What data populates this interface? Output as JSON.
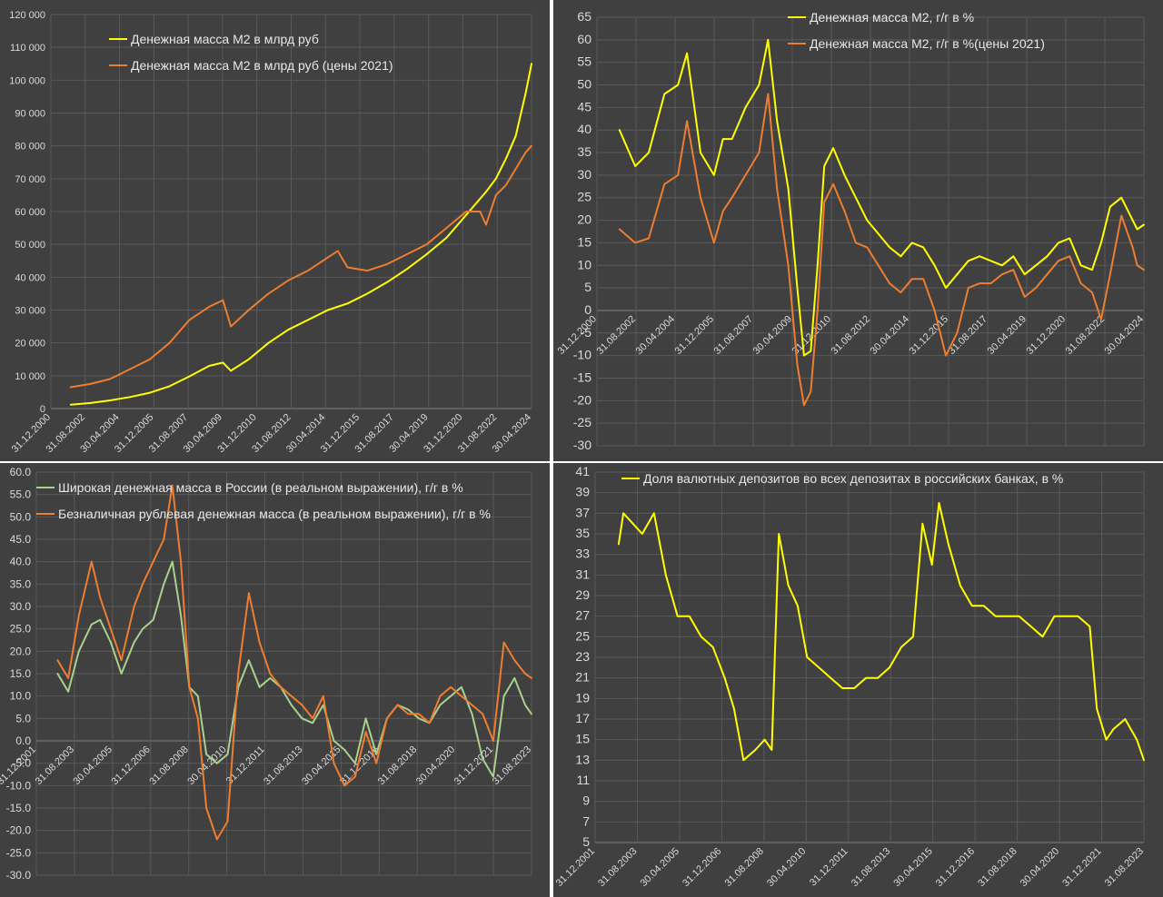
{
  "chart_data": [
    {
      "type": "line",
      "x_ticks": [
        "31.12.2000",
        "31.08.2002",
        "30.04.2004",
        "31.12.2005",
        "31.08.2007",
        "30.04.2009",
        "31.12.2010",
        "31.08.2012",
        "30.04.2014",
        "31.12.2015",
        "31.08.2017",
        "30.04.2019",
        "31.12.2020",
        "31.08.2022",
        "30.04.2024"
      ],
      "y_ticks": [
        "0",
        "10 000",
        "20 000",
        "30 000",
        "40 000",
        "50 000",
        "60 000",
        "70 000",
        "80 000",
        "90 000",
        "100 000",
        "110 000",
        "120 000"
      ],
      "ylim": [
        0,
        120000
      ],
      "xlim": [
        2000.0,
        2024.3
      ],
      "series": [
        {
          "name": "Денежная масса М2 в млрд руб",
          "color": "#ffff00",
          "x": [
            2001.0,
            2002.0,
            2003.0,
            2004.0,
            2005.0,
            2006.0,
            2007.0,
            2008.0,
            2008.7,
            2009.1,
            2010.0,
            2011.0,
            2012.0,
            2013.0,
            2014.0,
            2015.0,
            2016.0,
            2017.0,
            2018.0,
            2019.0,
            2020.0,
            2021.0,
            2022.0,
            2022.5,
            2023.0,
            2023.5,
            2024.0,
            2024.3
          ],
          "values": [
            1200,
            1700,
            2500,
            3500,
            4800,
            6800,
            9800,
            13000,
            14000,
            11500,
            15000,
            20000,
            24000,
            27000,
            30000,
            32000,
            35000,
            38500,
            42500,
            47000,
            52000,
            59000,
            66000,
            70000,
            76000,
            83000,
            96000,
            105000
          ]
        },
        {
          "name": "Денежная масса М2 в млрд руб (цены 2021)",
          "color": "#ed7d31",
          "x": [
            2001.0,
            2002.0,
            2003.0,
            2004.0,
            2005.0,
            2006.0,
            2007.0,
            2008.0,
            2008.7,
            2009.1,
            2010.0,
            2011.0,
            2012.0,
            2013.0,
            2014.0,
            2014.5,
            2015.0,
            2016.0,
            2017.0,
            2018.0,
            2019.0,
            2020.0,
            2021.0,
            2021.7,
            2022.0,
            2022.5,
            2023.0,
            2023.5,
            2024.0,
            2024.3
          ],
          "values": [
            6500,
            7500,
            9000,
            12000,
            15000,
            20000,
            27000,
            31000,
            33000,
            25000,
            30000,
            35000,
            39000,
            42000,
            46000,
            48000,
            43000,
            42000,
            44000,
            47000,
            50000,
            55000,
            60000,
            60000,
            56000,
            65000,
            68000,
            73000,
            78000,
            80000
          ]
        }
      ]
    },
    {
      "type": "line",
      "x_ticks": [
        "31.12.2000",
        "31.08.2002",
        "30.04.2004",
        "31.12.2005",
        "31.08.2007",
        "30.04.2009",
        "31.12.2010",
        "31.08.2012",
        "30.04.2014",
        "31.12.2015",
        "31.08.2017",
        "30.04.2019",
        "31.12.2020",
        "31.08.2022",
        "30.04.2024"
      ],
      "y_ticks": [
        "-30",
        "-25",
        "-20",
        "-15",
        "-10",
        "-5",
        "0",
        "5",
        "10",
        "15",
        "20",
        "25",
        "30",
        "35",
        "40",
        "45",
        "50",
        "55",
        "60",
        "65"
      ],
      "ylim": [
        -30,
        65
      ],
      "xlim": [
        2000.0,
        2024.3
      ],
      "series": [
        {
          "name": "Денежная масса М2, г/г в %",
          "color": "#ffff00",
          "x": [
            2001.0,
            2001.7,
            2002.3,
            2003.0,
            2003.6,
            2004.0,
            2004.6,
            2005.2,
            2005.6,
            2006.0,
            2006.6,
            2007.2,
            2007.6,
            2008.0,
            2008.5,
            2008.9,
            2009.2,
            2009.5,
            2009.8,
            2010.1,
            2010.5,
            2011.0,
            2011.5,
            2012.0,
            2012.5,
            2013.0,
            2013.5,
            2014.0,
            2014.5,
            2015.0,
            2015.5,
            2016.0,
            2016.5,
            2017.0,
            2017.5,
            2018.0,
            2018.5,
            2019.0,
            2019.5,
            2020.0,
            2020.5,
            2021.0,
            2021.5,
            2022.0,
            2022.4,
            2022.8,
            2023.3,
            2023.8,
            2024.0,
            2024.3
          ],
          "values": [
            40,
            32,
            35,
            48,
            50,
            57,
            35,
            30,
            38,
            38,
            45,
            50,
            60,
            42,
            27,
            5,
            -10,
            -9,
            10,
            32,
            36,
            30,
            25,
            20,
            17,
            14,
            12,
            15,
            14,
            10,
            5,
            8,
            11,
            12,
            11,
            10,
            12,
            8,
            10,
            12,
            15,
            16,
            10,
            9,
            15,
            23,
            25,
            20,
            18,
            19
          ]
        },
        {
          "name": "Денежная масса М2, г/г в %(цены 2021)",
          "color": "#ed7d31",
          "x": [
            2001.0,
            2001.7,
            2002.3,
            2003.0,
            2003.6,
            2004.0,
            2004.6,
            2005.2,
            2005.6,
            2006.0,
            2006.6,
            2007.2,
            2007.6,
            2008.0,
            2008.5,
            2008.9,
            2009.2,
            2009.5,
            2009.8,
            2010.1,
            2010.5,
            2011.0,
            2011.5,
            2012.0,
            2012.5,
            2013.0,
            2013.5,
            2014.0,
            2014.5,
            2015.0,
            2015.5,
            2016.0,
            2016.5,
            2017.0,
            2017.5,
            2018.0,
            2018.5,
            2019.0,
            2019.5,
            2020.0,
            2020.5,
            2021.0,
            2021.5,
            2022.0,
            2022.4,
            2022.8,
            2023.3,
            2023.8,
            2024.0,
            2024.3
          ],
          "values": [
            18,
            15,
            16,
            28,
            30,
            42,
            25,
            15,
            22,
            25,
            30,
            35,
            48,
            27,
            10,
            -12,
            -21,
            -18,
            0,
            24,
            28,
            22,
            15,
            14,
            10,
            6,
            4,
            7,
            7,
            0,
            -10,
            -5,
            5,
            6,
            6,
            8,
            9,
            3,
            5,
            8,
            11,
            12,
            6,
            4,
            -2,
            8,
            21,
            14,
            10,
            9
          ]
        }
      ]
    },
    {
      "type": "line",
      "x_ticks": [
        "31.12.2001",
        "31.08.2003",
        "30.04.2005",
        "31.12.2006",
        "31.08.2008",
        "30.04.2010",
        "31.12.2011",
        "31.08.2013",
        "30.04.2015",
        "31.12.2016",
        "31.08.2018",
        "30.04.2020",
        "31.12.2021",
        "31.08.2023"
      ],
      "y_ticks": [
        "-30.0",
        "-25.0",
        "-20.0",
        "-15.0",
        "-10.0",
        "-5.0",
        "0.0",
        "5.0",
        "10.0",
        "15.0",
        "20.0",
        "25.0",
        "30.0",
        "35.0",
        "40.0",
        "45.0",
        "50.0",
        "55.0",
        "60.0"
      ],
      "ylim": [
        -30,
        60
      ],
      "xlim": [
        2001.0,
        2024.3
      ],
      "series": [
        {
          "name": "Широкая денежная масса в России (в реальном выражении), г/г в %",
          "color": "#a9d18e",
          "x": [
            2002.0,
            2002.5,
            2003.0,
            2003.6,
            2004.0,
            2004.5,
            2005.0,
            2005.6,
            2006.0,
            2006.5,
            2007.0,
            2007.4,
            2007.8,
            2008.2,
            2008.6,
            2009.0,
            2009.5,
            2010.0,
            2010.5,
            2011.0,
            2011.5,
            2012.0,
            2012.5,
            2013.0,
            2013.5,
            2014.0,
            2014.5,
            2015.0,
            2015.5,
            2016.0,
            2016.5,
            2017.0,
            2017.5,
            2018.0,
            2018.5,
            2019.0,
            2019.5,
            2020.0,
            2020.5,
            2021.0,
            2021.5,
            2022.0,
            2022.5,
            2023.0,
            2023.5,
            2024.0,
            2024.3
          ],
          "values": [
            15,
            11,
            20,
            26,
            27,
            22,
            15,
            22,
            25,
            27,
            35,
            40,
            28,
            12,
            10,
            -3,
            -5,
            -3,
            12,
            18,
            12,
            14,
            12,
            8,
            5,
            4,
            8,
            0,
            -2,
            -5,
            5,
            -3,
            5,
            8,
            7,
            5,
            4,
            8,
            10,
            12,
            6,
            -4,
            -8,
            10,
            14,
            8,
            6
          ]
        },
        {
          "name": "Безналичная рублевая денежная масса (в реальном выражении), г/г в %",
          "color": "#ed7d31",
          "x": [
            2002.0,
            2002.5,
            2003.0,
            2003.6,
            2004.0,
            2004.5,
            2005.0,
            2005.6,
            2006.0,
            2006.5,
            2007.0,
            2007.4,
            2007.8,
            2008.2,
            2008.6,
            2009.0,
            2009.5,
            2010.0,
            2010.5,
            2011.0,
            2011.5,
            2012.0,
            2012.5,
            2013.0,
            2013.5,
            2014.0,
            2014.5,
            2015.0,
            2015.5,
            2016.0,
            2016.5,
            2017.0,
            2017.5,
            2018.0,
            2018.5,
            2019.0,
            2019.5,
            2020.0,
            2020.5,
            2021.0,
            2021.5,
            2022.0,
            2022.5,
            2023.0,
            2023.5,
            2024.0,
            2024.3
          ],
          "values": [
            18,
            14,
            28,
            40,
            32,
            25,
            18,
            30,
            35,
            40,
            45,
            57,
            40,
            12,
            5,
            -15,
            -22,
            -18,
            15,
            33,
            22,
            15,
            12,
            10,
            8,
            5,
            10,
            -5,
            -10,
            -8,
            2,
            -5,
            5,
            8,
            6,
            6,
            4,
            10,
            12,
            10,
            8,
            6,
            0,
            22,
            18,
            15,
            14
          ]
        }
      ]
    },
    {
      "type": "line",
      "x_ticks": [
        "31.12.2001",
        "31.08.2003",
        "30.04.2005",
        "31.12.2006",
        "31.08.2008",
        "30.04.2010",
        "31.12.2011",
        "31.08.2013",
        "30.04.2015",
        "31.12.2016",
        "31.08.2018",
        "30.04.2020",
        "31.12.2021",
        "31.08.2023"
      ],
      "y_ticks": [
        "5",
        "7",
        "9",
        "11",
        "13",
        "15",
        "17",
        "19",
        "21",
        "23",
        "25",
        "27",
        "29",
        "31",
        "33",
        "35",
        "37",
        "39",
        "41"
      ],
      "ylim": [
        5,
        41
      ],
      "xlim": [
        2001.0,
        2024.3
      ],
      "series": [
        {
          "name": "Доля валютных депозитов во всех депозитах в российских банках,  в %",
          "color": "#ffff00",
          "x": [
            2002.0,
            2002.2,
            2002.6,
            2003.0,
            2003.5,
            2004.0,
            2004.5,
            2005.0,
            2005.5,
            2006.0,
            2006.5,
            2006.9,
            2007.3,
            2007.8,
            2008.2,
            2008.5,
            2008.8,
            2009.2,
            2009.6,
            2010.0,
            2010.5,
            2011.0,
            2011.5,
            2012.0,
            2012.5,
            2013.0,
            2013.5,
            2014.0,
            2014.5,
            2014.9,
            2015.3,
            2015.6,
            2016.0,
            2016.5,
            2017.0,
            2017.5,
            2018.0,
            2018.5,
            2019.0,
            2019.5,
            2020.0,
            2020.5,
            2021.0,
            2021.5,
            2022.0,
            2022.3,
            2022.7,
            2023.0,
            2023.5,
            2024.0,
            2024.3
          ],
          "values": [
            34,
            37,
            36,
            35,
            37,
            31,
            27,
            27,
            25,
            24,
            21,
            18,
            13,
            14,
            15,
            14,
            35,
            30,
            28,
            23,
            22,
            21,
            20,
            20,
            21,
            21,
            22,
            24,
            25,
            36,
            32,
            38,
            34,
            30,
            28,
            28,
            27,
            27,
            27,
            26,
            25,
            27,
            27,
            27,
            26,
            18,
            15,
            16,
            17,
            15,
            13
          ]
        }
      ]
    }
  ]
}
